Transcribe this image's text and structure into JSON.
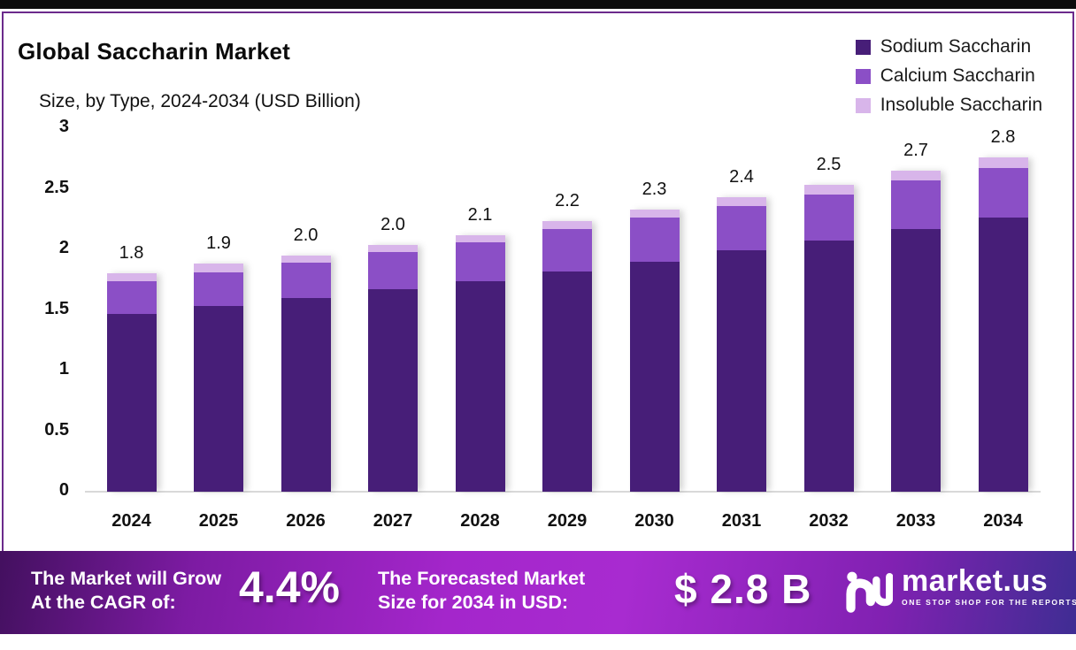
{
  "page": {
    "title": "Global Saccharin Market",
    "subtitle": "Size, by Type, 2024-2034 (USD Billion)"
  },
  "colors": {
    "sodium": "#471e78",
    "calcium": "#8b4fc6",
    "insoluble": "#d8b5ea",
    "frame_border": "#6b2a8c",
    "top_strip": "#0c0c0c",
    "axis_text": "#111111",
    "baseline": "#d9d9d9",
    "banner_left": "#43105f",
    "banner_mid": "#a426cb",
    "banner_right": "#3f2d93"
  },
  "legend": [
    {
      "label": "Sodium Saccharin",
      "color": "#471e78"
    },
    {
      "label": "Calcium Saccharin",
      "color": "#8b4fc6"
    },
    {
      "label": "Insoluble Saccharin",
      "color": "#d8b5ea"
    }
  ],
  "chart_data": {
    "type": "bar",
    "stacked": true,
    "title": "Global Saccharin Market",
    "subtitle": "Size, by Type, 2024-2034 (USD Billion)",
    "xlabel": "",
    "ylabel": "USD Billion",
    "ylim": [
      0,
      3
    ],
    "yticks": [
      3,
      2.5,
      2,
      1.5,
      1,
      0.5,
      0
    ],
    "ytick_labels": [
      "3",
      "2.5",
      "2",
      "1.5",
      "1",
      "0.5",
      "0"
    ],
    "grid": false,
    "legend_position": "top-right",
    "categories": [
      "2024",
      "2025",
      "2026",
      "2027",
      "2028",
      "2029",
      "2030",
      "2031",
      "2032",
      "2033",
      "2034"
    ],
    "series": [
      {
        "name": "Sodium Saccharin",
        "color": "#471e78",
        "values": [
          1.47,
          1.53,
          1.6,
          1.67,
          1.74,
          1.82,
          1.9,
          1.99,
          2.07,
          2.17,
          2.26
        ]
      },
      {
        "name": "Calcium Saccharin",
        "color": "#8b4fc6",
        "values": [
          0.27,
          0.28,
          0.29,
          0.31,
          0.32,
          0.35,
          0.36,
          0.37,
          0.38,
          0.4,
          0.41
        ]
      },
      {
        "name": "Insoluble Saccharin",
        "color": "#d8b5ea",
        "values": [
          0.06,
          0.07,
          0.06,
          0.06,
          0.06,
          0.06,
          0.07,
          0.07,
          0.08,
          0.08,
          0.09
        ]
      }
    ],
    "totals": [
      1.8,
      1.9,
      2.0,
      2.0,
      2.1,
      2.2,
      2.3,
      2.4,
      2.5,
      2.7,
      2.8
    ],
    "total_labels": [
      "1.8",
      "1.9",
      "2.0",
      "2.0",
      "2.1",
      "2.2",
      "2.3",
      "2.4",
      "2.5",
      "2.7",
      "2.8"
    ]
  },
  "banner": {
    "cagr_line1": "The Market will Grow",
    "cagr_line2": "At the CAGR of:",
    "cagr_value": "4.4%",
    "forecast_line1": "The Forecasted Market",
    "forecast_line2": "Size for 2034 in USD:",
    "forecast_value": "$ 2.8 B",
    "logo_name": "market.us",
    "logo_tagline": "ONE STOP SHOP FOR THE REPORTS"
  }
}
